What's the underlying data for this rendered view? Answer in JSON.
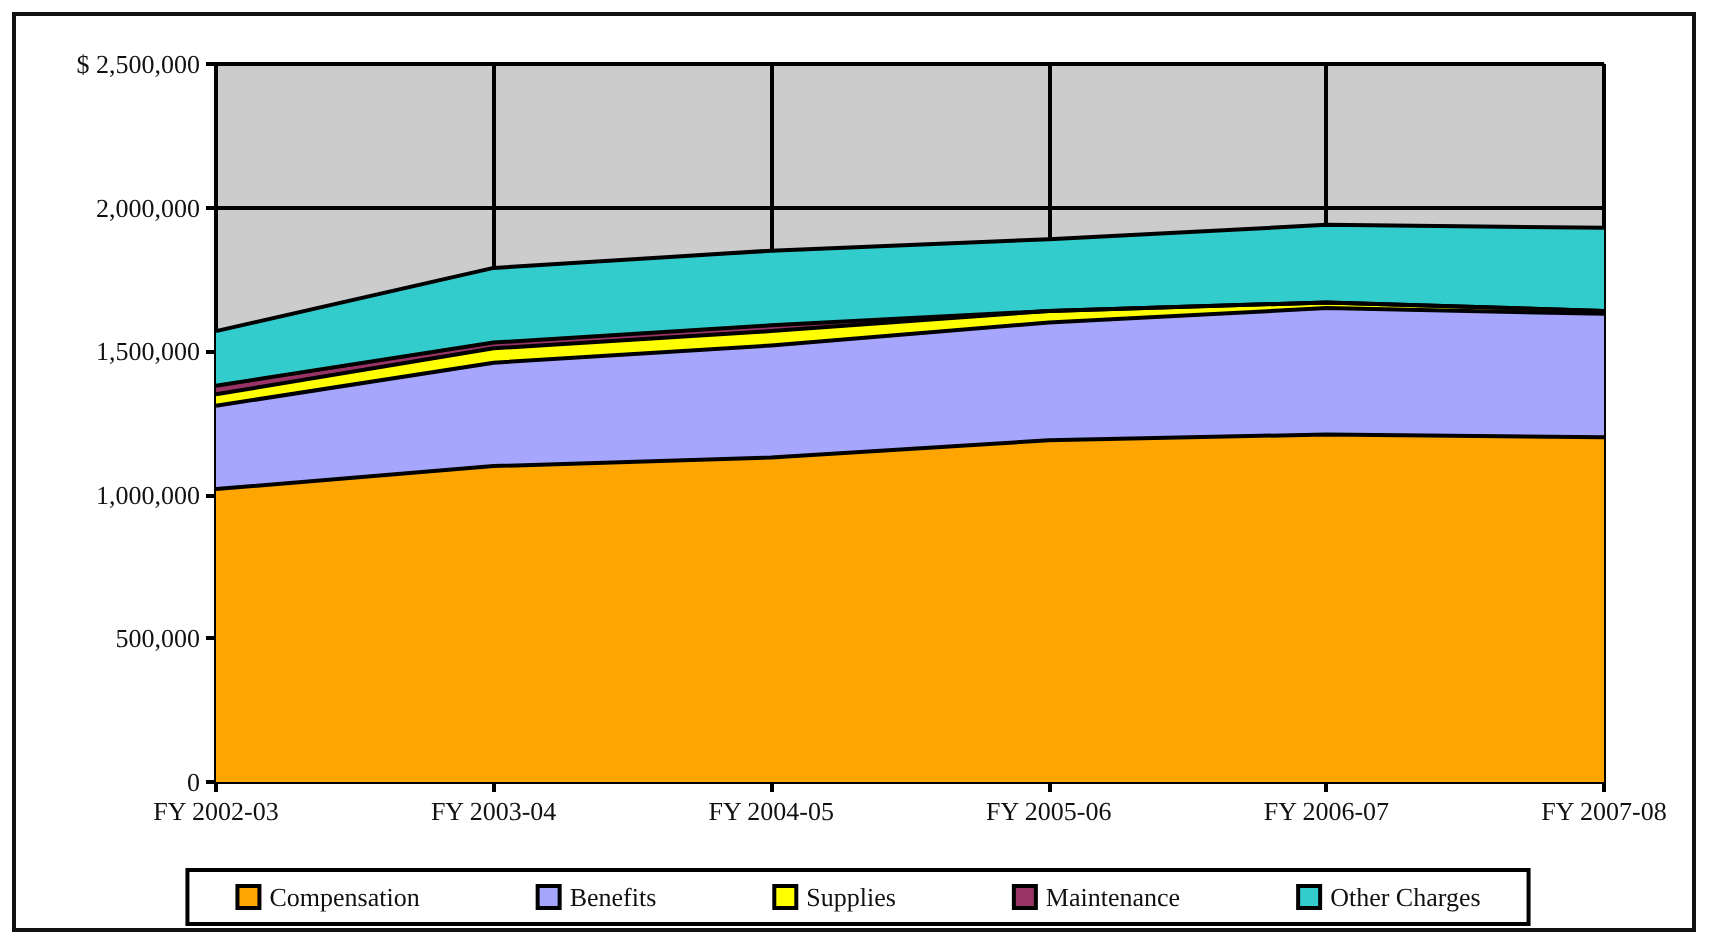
{
  "chart_data": {
    "type": "area",
    "stacked": true,
    "categories": [
      "FY 2002-03",
      "FY 2003-04",
      "FY 2004-05",
      "FY 2005-06",
      "FY 2006-07",
      "FY 2007-08"
    ],
    "series": [
      {
        "name": "Compensation",
        "color": "#ffa500",
        "values": [
          1020000,
          1100000,
          1130000,
          1190000,
          1210000,
          1200000
        ]
      },
      {
        "name": "Benefits",
        "color": "#a6a6ff",
        "values": [
          290000,
          360000,
          390000,
          410000,
          440000,
          430000
        ]
      },
      {
        "name": "Supplies",
        "color": "#ffff00",
        "values": [
          40000,
          50000,
          50000,
          40000,
          20000,
          10000
        ]
      },
      {
        "name": "Maintenance",
        "color": "#993366",
        "values": [
          30000,
          20000,
          20000,
          0,
          0,
          0
        ]
      },
      {
        "name": "Other Charges",
        "color": "#33cccc",
        "values": [
          190000,
          260000,
          260000,
          250000,
          270000,
          290000
        ]
      }
    ],
    "ylim": [
      0,
      2500000
    ],
    "yticks": [
      {
        "value": 0,
        "label": "0"
      },
      {
        "value": 500000,
        "label": "500,000"
      },
      {
        "value": 1000000,
        "label": "1,000,000"
      },
      {
        "value": 1500000,
        "label": "1,500,000"
      },
      {
        "value": 2000000,
        "label": "2,000,000"
      },
      {
        "value": 2500000,
        "label": "$ 2,500,000"
      }
    ],
    "grid": true,
    "legend": "bottom"
  }
}
